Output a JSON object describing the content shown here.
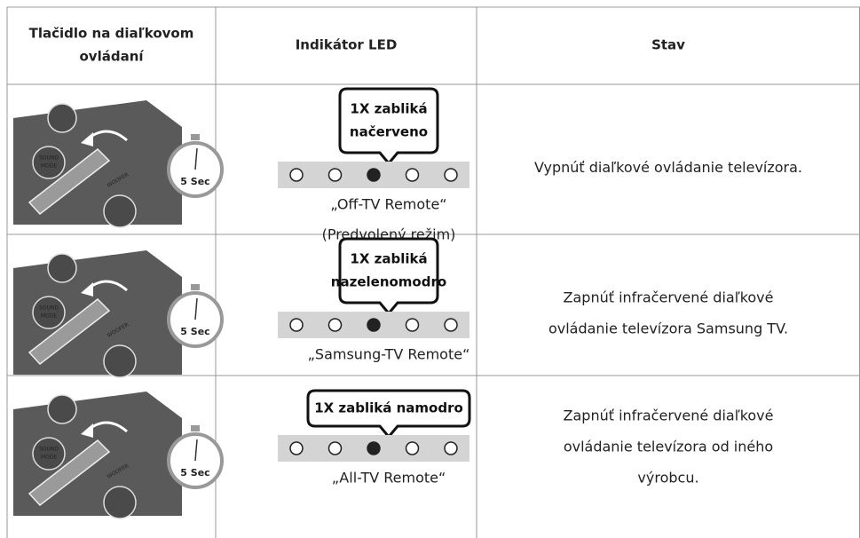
{
  "table": {
    "headers": [
      [
        "Tlačidlo na diaľkovom",
        "ovládaní"
      ],
      [
        "Indikátor LED"
      ],
      [
        "Stav"
      ]
    ],
    "rows": [
      {
        "bubble": [
          "1X zabliká",
          "načerveno"
        ],
        "mode": [
          "„Off-TV Remote“",
          "(Predvolený režim)"
        ],
        "status": [
          "Vypnúť diaľkové ovládanie televízora."
        ]
      },
      {
        "bubble": [
          "1X zabliká",
          "nazelenomodro"
        ],
        "mode": [
          "„Samsung-TV Remote“"
        ],
        "status": [
          "Zapnúť infračervené diaľkové",
          "ovládanie televízora Samsung TV."
        ]
      },
      {
        "bubble": [
          "1X zabliká namodro"
        ],
        "mode": [
          "„All-TV Remote“"
        ],
        "status": [
          "Zapnúť infračervené diaľkové",
          "ovládanie televízora od iného",
          "výrobcu."
        ]
      }
    ]
  },
  "remote": {
    "timer": "5 Sec",
    "buttons": [
      "SOUND",
      "MODE",
      "WOOFER"
    ]
  }
}
